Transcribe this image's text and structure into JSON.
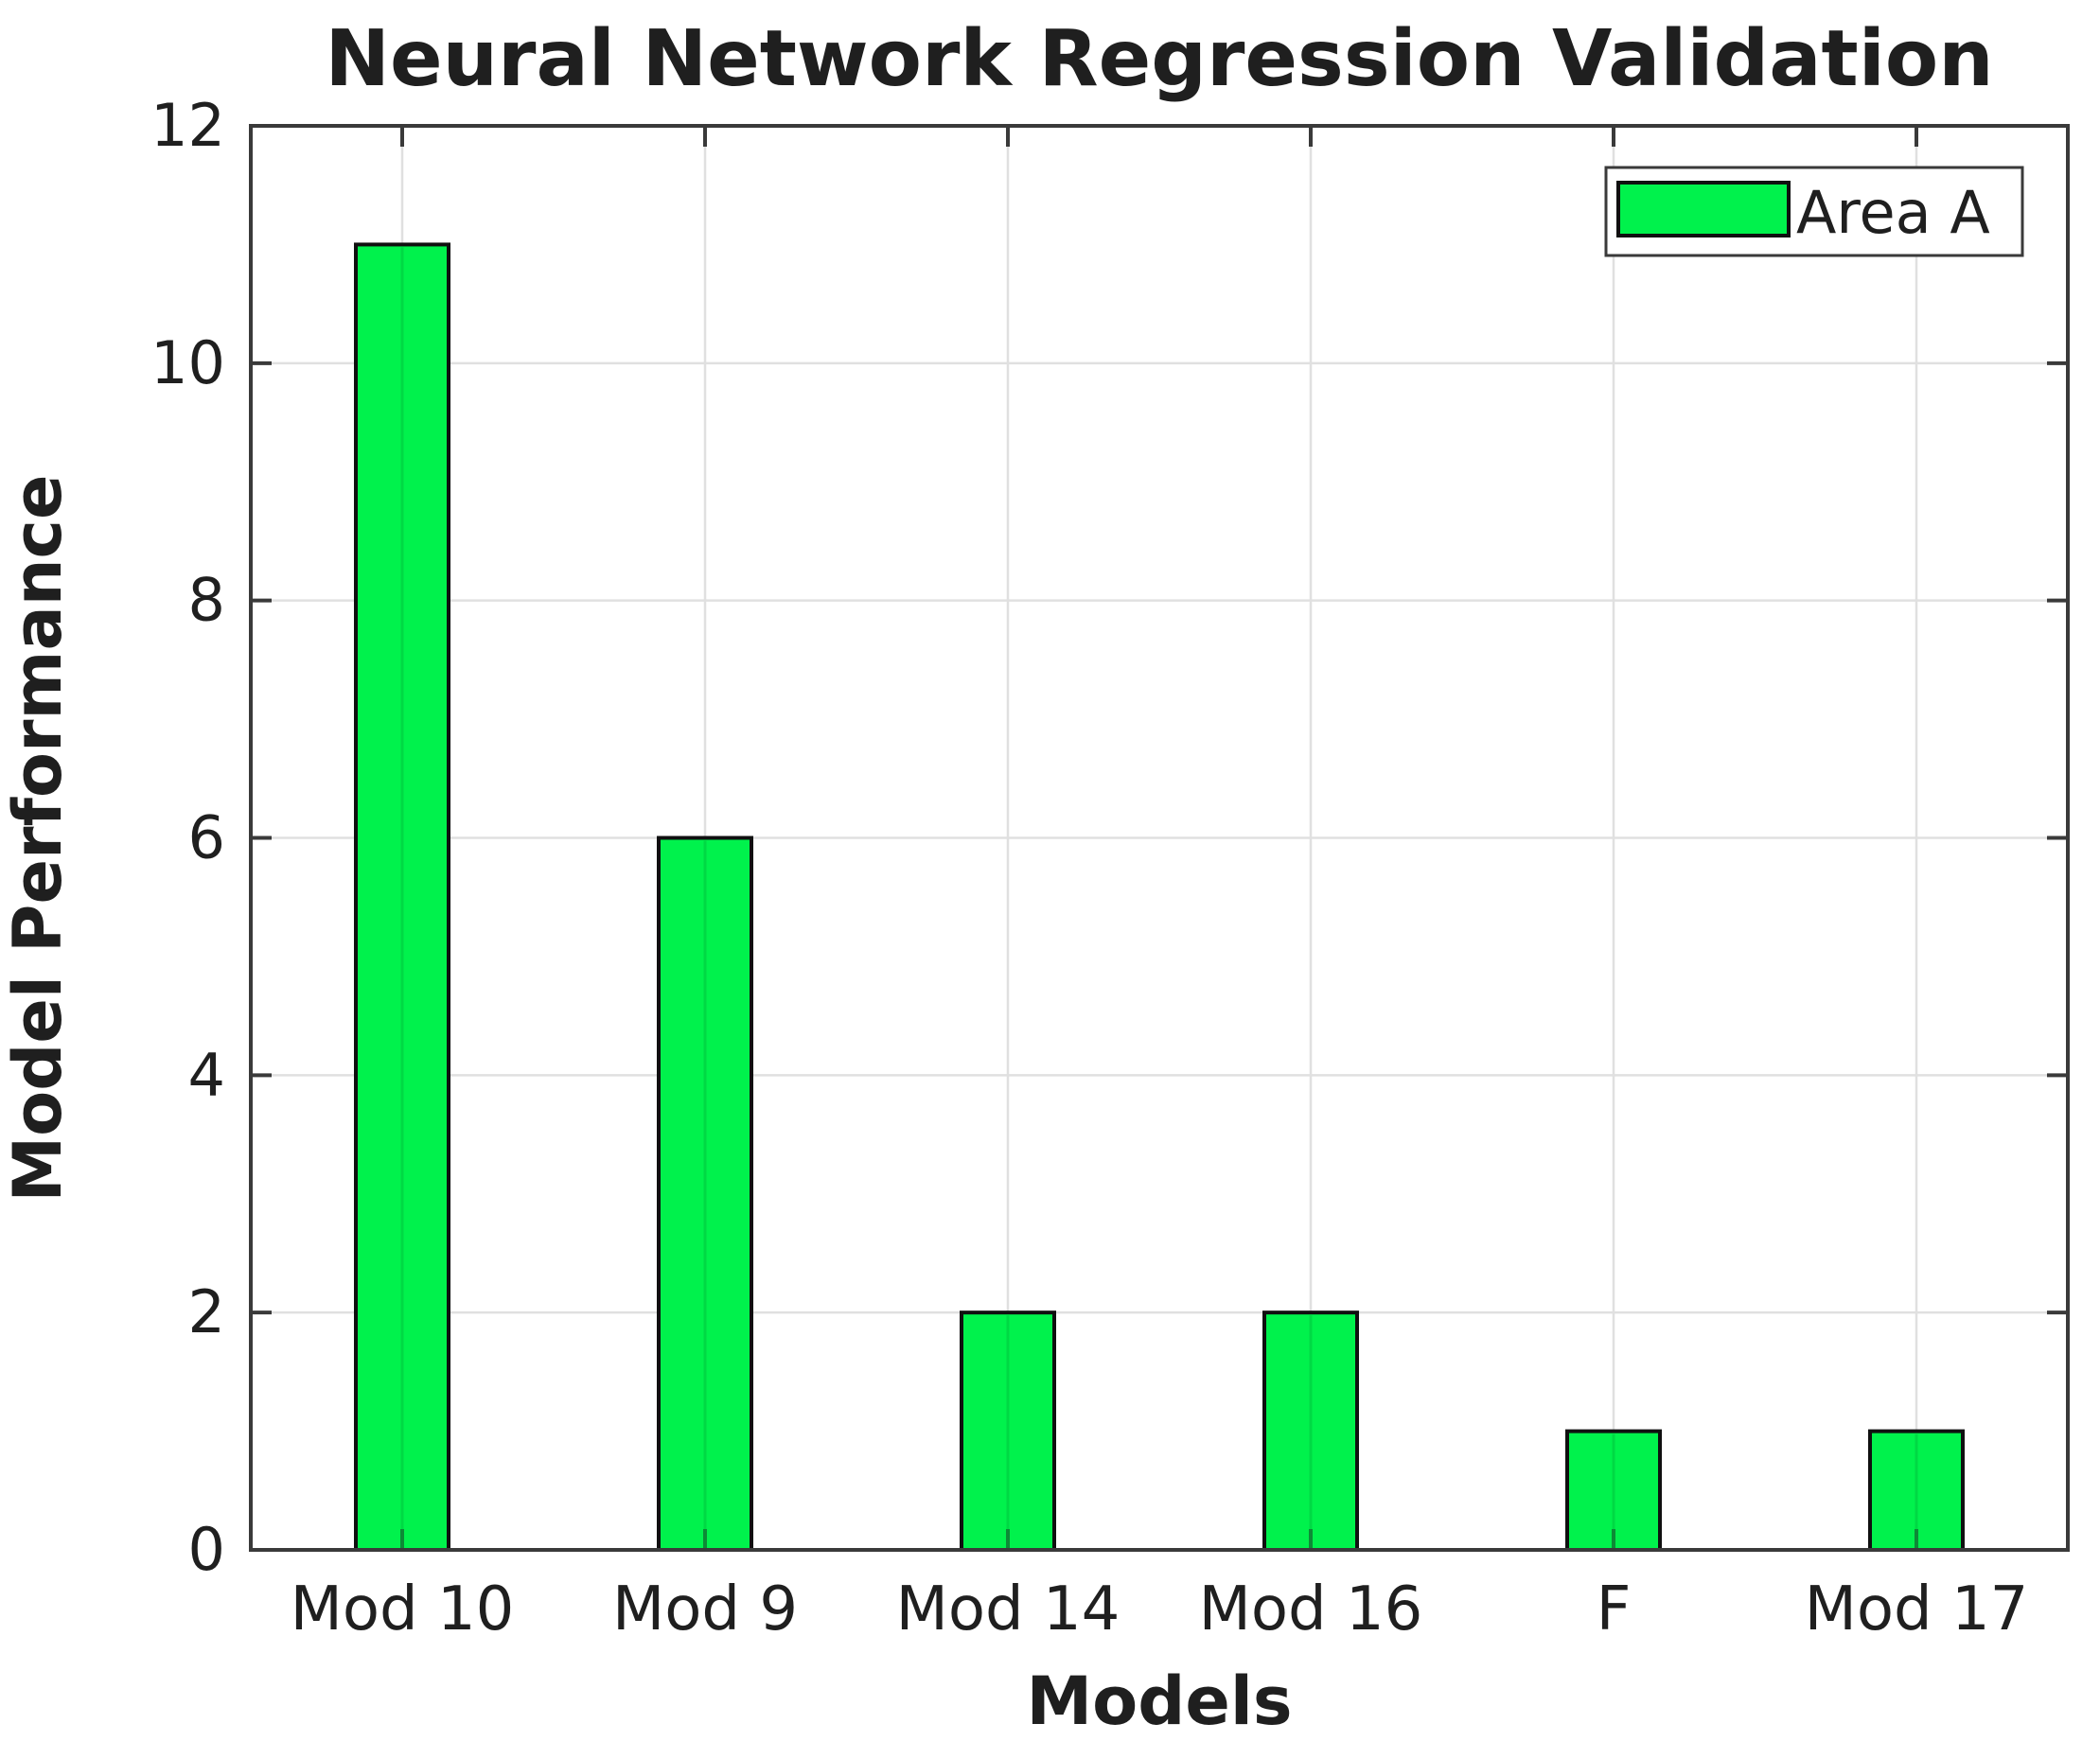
{
  "chart_data": {
    "type": "bar",
    "title": "Neural Network Regression Validation",
    "xlabel": "Models",
    "ylabel": "Model Performance",
    "categories": [
      "Mod 10",
      "Mod 9",
      "Mod 14",
      "Mod 16",
      "F",
      "Mod 17"
    ],
    "values": [
      11,
      6,
      2,
      2,
      1,
      1
    ],
    "series": [
      {
        "name": "Area A",
        "values": [
          11,
          6,
          2,
          2,
          1,
          1
        ]
      }
    ],
    "legend": {
      "label": "Area A",
      "position": "top-right"
    },
    "ylim": [
      0,
      12
    ],
    "yticks": [
      0,
      2,
      4,
      6,
      8,
      10,
      12
    ],
    "grid": "on",
    "box": "on",
    "colors": {
      "bar_fill": "#00F24C",
      "bar_edge": "#101010",
      "grid": "#E0E0E0",
      "spine": "#3A3A3A",
      "text": "#1F1F1F",
      "tick_on_bar": "#0D8A36",
      "legend_bg": "#FFFFFF",
      "legend_border": "#3A3A3A"
    }
  }
}
